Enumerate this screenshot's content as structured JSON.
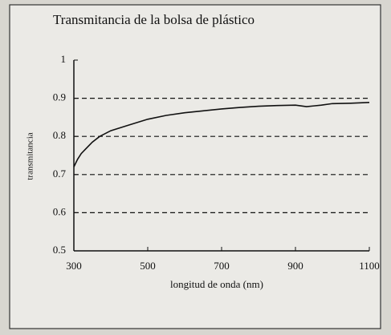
{
  "chart_data": {
    "type": "line",
    "title": "Transmitancia de la bolsa de plástico",
    "xlabel": "longitud de onda (nm)",
    "ylabel": "transmitancia",
    "x": [
      300,
      305,
      310,
      320,
      330,
      340,
      350,
      370,
      400,
      450,
      500,
      550,
      600,
      650,
      700,
      750,
      800,
      850,
      900,
      930,
      950,
      970,
      1000,
      1050,
      1100
    ],
    "series": [
      {
        "name": "transmitancia",
        "color": "#111111",
        "values": [
          0.72,
          0.73,
          0.74,
          0.755,
          0.765,
          0.775,
          0.785,
          0.8,
          0.815,
          0.83,
          0.845,
          0.855,
          0.862,
          0.867,
          0.872,
          0.876,
          0.879,
          0.881,
          0.882,
          0.878,
          0.88,
          0.882,
          0.886,
          0.887,
          0.889
        ]
      }
    ],
    "xlim": [
      300,
      1100
    ],
    "xticks": [
      300,
      500,
      700,
      900,
      1100
    ],
    "ylim": [
      0.5,
      1
    ],
    "yticks": [
      0.5,
      0.6,
      0.7,
      0.8,
      0.9,
      1
    ],
    "grid": true
  }
}
